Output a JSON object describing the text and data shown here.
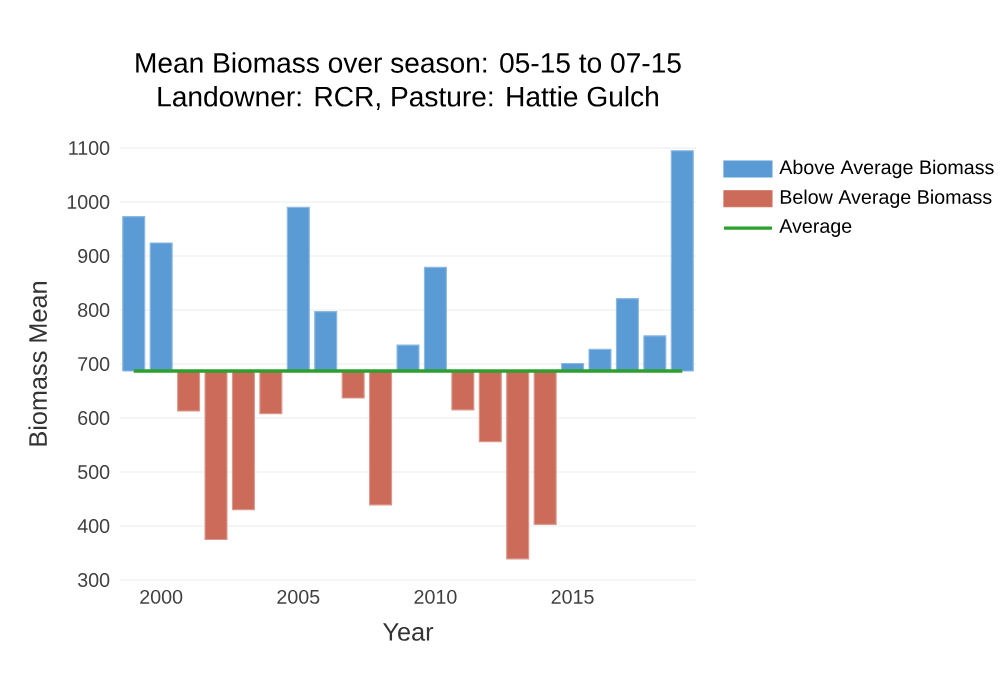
{
  "chart_data": {
    "type": "bar",
    "title": "Mean Biomass over season: 05-15 to 07-15",
    "subtitle": "Landowner: RCR, Pasture: Hattie Gulch",
    "xlabel": "Year",
    "ylabel": "Biomass Mean",
    "x": [
      1999,
      2000,
      2001,
      2002,
      2003,
      2004,
      2005,
      2006,
      2007,
      2008,
      2009,
      2010,
      2011,
      2012,
      2013,
      2014,
      2015,
      2016,
      2017,
      2018,
      2019
    ],
    "series": [
      {
        "name": "Above Average Biomass",
        "color": "#5b9bd5",
        "base": [
          687,
          687,
          null,
          null,
          null,
          null,
          687,
          687,
          null,
          null,
          687,
          687,
          null,
          null,
          null,
          null,
          687,
          687,
          687,
          687,
          687
        ],
        "values": [
          286,
          237,
          null,
          null,
          null,
          null,
          303,
          110,
          null,
          null,
          48,
          192,
          null,
          null,
          null,
          null,
          14,
          40,
          134,
          65,
          408
        ]
      },
      {
        "name": "Below Average Biomass",
        "color": "#cd6b5a",
        "base": [
          null,
          null,
          687,
          687,
          687,
          687,
          null,
          null,
          687,
          687,
          null,
          null,
          687,
          687,
          687,
          687,
          null,
          null,
          null,
          null,
          null
        ],
        "values": [
          null,
          null,
          -74,
          -312,
          -257,
          -79,
          null,
          null,
          -50,
          -248,
          null,
          null,
          -72,
          -131,
          -348,
          -284,
          null,
          null,
          null,
          null,
          null
        ]
      },
      {
        "name": "Average",
        "type": "line",
        "color": "#2ca02c",
        "marker": "none",
        "line_style": "solid",
        "values": [
          687,
          687,
          687,
          687,
          687,
          687,
          687,
          687,
          687,
          687,
          687,
          687,
          687,
          687,
          687,
          687,
          687,
          687,
          687,
          687,
          687
        ]
      }
    ],
    "xlim": [
      1998.5,
      2019.5
    ],
    "ylim": [
      300,
      1100
    ],
    "xticks": [
      2000,
      2005,
      2010,
      2015
    ],
    "yticks": [
      300,
      400,
      500,
      600,
      700,
      800,
      900,
      1000,
      1100
    ],
    "grid": "y",
    "legend": "top right"
  }
}
